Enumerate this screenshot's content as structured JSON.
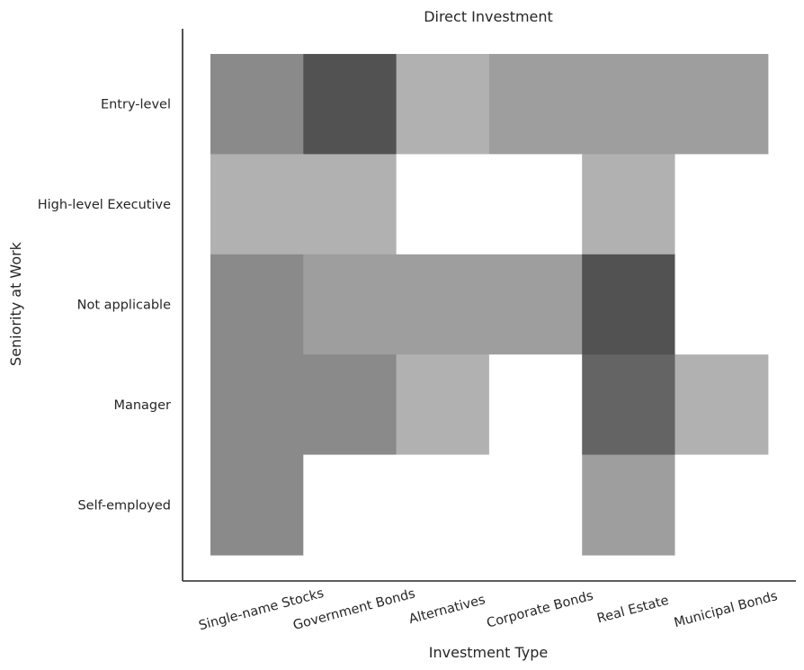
{
  "chart_data": {
    "type": "heatmap",
    "title": "Direct Investment",
    "xlabel": "Investment Type",
    "ylabel": "Seniority at Work",
    "x_categories": [
      "Single-name Stocks",
      "Government Bonds",
      "Alternatives",
      "Corporate Bonds",
      "Real Estate",
      "Municipal Bonds"
    ],
    "y_categories": [
      "Entry-level",
      "High-level Executive",
      "Not applicable",
      "Manager",
      "Self-employed"
    ],
    "values": [
      [
        3,
        6,
        1,
        2,
        2,
        2
      ],
      [
        1,
        1,
        0,
        0,
        1,
        0
      ],
      [
        3,
        2,
        2,
        2,
        6,
        0
      ],
      [
        3,
        3,
        1,
        0,
        5,
        1
      ],
      [
        3,
        0,
        0,
        0,
        2,
        0
      ]
    ],
    "color_scale": {
      "0": "#ffffff",
      "1": "#b1b1b1",
      "2": "#9e9e9e",
      "3": "#8a8a8a",
      "5": "#646464",
      "6": "#525252"
    },
    "grid": false,
    "legend": "none"
  }
}
